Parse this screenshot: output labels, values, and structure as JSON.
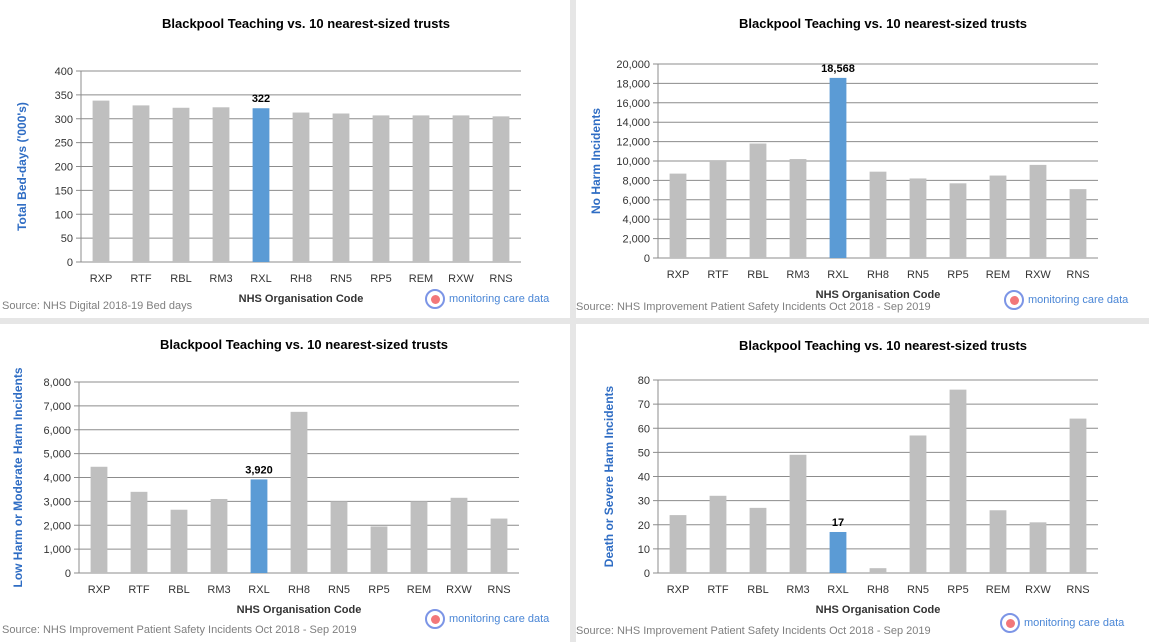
{
  "colors": {
    "bar": "#bfbfbf",
    "highlight": "#5b9bd5",
    "grid": "#8c8c8c",
    "ylabel": "#2f6dc4"
  },
  "brand": {
    "label": "monitoring care data"
  },
  "chart_data": [
    {
      "type": "bar",
      "title": "Blackpool Teaching vs. 10 nearest-sized trusts",
      "xlabel": "NHS Organisation Code",
      "ylabel": "Total Bed-days ('000's)",
      "categories": [
        "RXP",
        "RTF",
        "RBL",
        "RM3",
        "RXL",
        "RH8",
        "RN5",
        "RP5",
        "REM",
        "RXW",
        "RNS"
      ],
      "values": [
        338,
        328,
        323,
        324,
        322,
        313,
        311,
        307,
        307,
        307,
        305
      ],
      "highlight_index": 4,
      "highlight_label": "322",
      "ylim": [
        0,
        400
      ],
      "yticks": [
        "0",
        "50",
        "100",
        "150",
        "200",
        "250",
        "300",
        "350",
        "400"
      ],
      "grid": true,
      "source": "Source: NHS Digital 2018-19 Bed days"
    },
    {
      "type": "bar",
      "title": "Blackpool Teaching vs. 10 nearest-sized trusts",
      "xlabel": "NHS Organisation Code",
      "ylabel": "No Harm Incidents",
      "categories": [
        "RXP",
        "RTF",
        "RBL",
        "RM3",
        "RXL",
        "RH8",
        "RN5",
        "RP5",
        "REM",
        "RXW",
        "RNS"
      ],
      "values": [
        8700,
        10000,
        11800,
        10200,
        18568,
        8900,
        8200,
        7700,
        8500,
        9600,
        7100
      ],
      "highlight_index": 4,
      "highlight_label": "18,568",
      "ylim": [
        0,
        20000
      ],
      "yticks": [
        "0",
        "2,000",
        "4,000",
        "6,000",
        "8,000",
        "10,000",
        "12,000",
        "14,000",
        "16,000",
        "18,000",
        "20,000"
      ],
      "grid": true,
      "source": "Source: NHS Improvement Patient Safety Incidents Oct 2018 - Sep 2019"
    },
    {
      "type": "bar",
      "title": "Blackpool Teaching vs. 10 nearest-sized trusts",
      "xlabel": "NHS Organisation Code",
      "ylabel": "Low Harm or Moderate Harm Incidents",
      "categories": [
        "RXP",
        "RTF",
        "RBL",
        "RM3",
        "RXL",
        "RH8",
        "RN5",
        "RP5",
        "REM",
        "RXW",
        "RNS"
      ],
      "values": [
        4450,
        3400,
        2650,
        3100,
        3920,
        6750,
        3000,
        1950,
        3000,
        3150,
        2280
      ],
      "highlight_index": 4,
      "highlight_label": "3,920",
      "ylim": [
        0,
        8000
      ],
      "yticks": [
        "0",
        "1,000",
        "2,000",
        "3,000",
        "4,000",
        "5,000",
        "6,000",
        "7,000",
        "8,000"
      ],
      "grid": true,
      "source": "Source: NHS Improvement Patient Safety Incidents Oct 2018 - Sep 2019"
    },
    {
      "type": "bar",
      "title": "Blackpool Teaching vs. 10 nearest-sized trusts",
      "xlabel": "NHS Organisation Code",
      "ylabel": "Death or Severe Harm Incidents",
      "categories": [
        "RXP",
        "RTF",
        "RBL",
        "RM3",
        "RXL",
        "RH8",
        "RN5",
        "RP5",
        "REM",
        "RXW",
        "RNS"
      ],
      "values": [
        24,
        32,
        27,
        49,
        17,
        2,
        57,
        76,
        26,
        21,
        64
      ],
      "highlight_index": 4,
      "highlight_label": "17",
      "ylim": [
        0,
        80
      ],
      "yticks": [
        "0",
        "10",
        "20",
        "30",
        "40",
        "50",
        "60",
        "70",
        "80"
      ],
      "grid": true,
      "source": "Source: NHS Improvement Patient Safety Incidents Oct 2018 - Sep 2019"
    }
  ]
}
